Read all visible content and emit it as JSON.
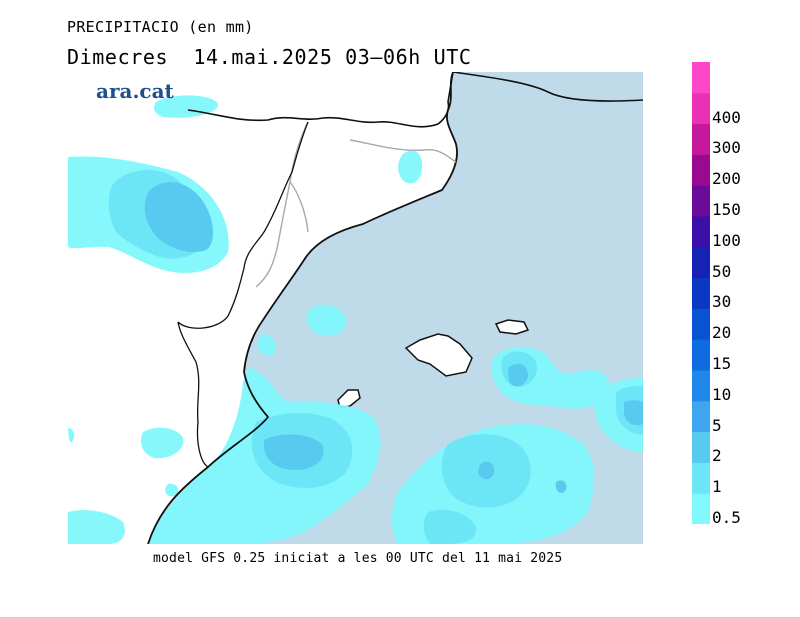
{
  "header": {
    "variable_label": "PRECIPITACIO (en mm)",
    "date_line": "Dimecres  14.mai.2025 03–06h UTC"
  },
  "brand": {
    "name": "ara.cat",
    "color": "#1f4f8a"
  },
  "footer": {
    "model_note": "model GFS 0.25 iniciat a les 00 UTC del 11 mai 2025"
  },
  "colors": {
    "sea": "#bfdbea",
    "land": "#ffffff",
    "coast": "#111111",
    "border": "#a8a8a8"
  },
  "legend": {
    "unit": "mm",
    "levels": [
      {
        "label": "0.5",
        "color": "#80f8fc"
      },
      {
        "label": "1",
        "color": "#6ce6f7"
      },
      {
        "label": "2",
        "color": "#58caf0"
      },
      {
        "label": "5",
        "color": "#3ea6ef"
      },
      {
        "label": "10",
        "color": "#1f86ea"
      },
      {
        "label": "15",
        "color": "#0f6ce0"
      },
      {
        "label": "20",
        "color": "#0a52d4"
      },
      {
        "label": "30",
        "color": "#0a38c4"
      },
      {
        "label": "50",
        "color": "#1622b4"
      },
      {
        "label": "100",
        "color": "#3a10a8"
      },
      {
        "label": "150",
        "color": "#6a0c98"
      },
      {
        "label": "200",
        "color": "#9a0a90"
      },
      {
        "label": "300",
        "color": "#c6189c"
      },
      {
        "label": "400",
        "color": "#ea30b4"
      },
      {
        "label": "",
        "color": "#fa48c8"
      }
    ]
  }
}
